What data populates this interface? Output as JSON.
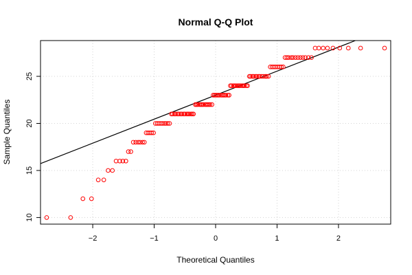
{
  "chart_data": {
    "type": "scatter",
    "title": "Normal Q-Q Plot",
    "xlabel": "Theoretical Quantiles",
    "ylabel": "Sample Quantiles",
    "xlim": [
      -2.85,
      2.85
    ],
    "ylim": [
      9.3,
      28.8
    ],
    "x_ticks": [
      -2,
      -1,
      0,
      1,
      2
    ],
    "x_tick_labels": [
      "−2",
      "−1",
      "0",
      "1",
      "2"
    ],
    "y_ticks": [
      10,
      15,
      20,
      25
    ],
    "y_tick_labels": [
      "10",
      "15",
      "20",
      "25"
    ],
    "grid": true,
    "reference_line": {
      "intercept": 23.0,
      "slope": 2.55
    },
    "colors": {
      "points": "#ff0000",
      "line": "#000000",
      "grid": "#d3d3d3"
    },
    "series": [
      {
        "points": [
          [
            -2.75,
            10
          ],
          [
            -2.36,
            10
          ],
          [
            -2.16,
            12
          ],
          [
            -2.02,
            12
          ],
          [
            -1.91,
            14
          ],
          [
            -1.82,
            14
          ],
          [
            -1.75,
            15
          ],
          [
            -1.68,
            15
          ],
          [
            -1.62,
            16
          ],
          [
            -1.56,
            16
          ],
          [
            -1.51,
            16
          ],
          [
            -1.46,
            16
          ],
          [
            -1.42,
            17
          ],
          [
            -1.38,
            17
          ],
          [
            -1.34,
            18
          ],
          [
            -1.3,
            18
          ],
          [
            -1.26,
            18
          ],
          [
            -1.23,
            18
          ],
          [
            -1.19,
            18
          ],
          [
            -1.16,
            18
          ],
          [
            -1.13,
            19
          ],
          [
            -1.1,
            19
          ],
          [
            -1.07,
            19
          ],
          [
            -1.04,
            19
          ],
          [
            -1.01,
            19
          ],
          [
            -0.98,
            20
          ],
          [
            -0.95,
            20
          ],
          [
            -0.92,
            20
          ],
          [
            -0.89,
            20
          ],
          [
            -0.86,
            20
          ],
          [
            -0.83,
            20
          ],
          [
            -0.81,
            20
          ],
          [
            -0.78,
            20
          ],
          [
            -0.75,
            20
          ],
          [
            -0.72,
            21
          ],
          [
            -0.7,
            21
          ],
          [
            -0.67,
            21
          ],
          [
            -0.65,
            21
          ],
          [
            -0.62,
            21
          ],
          [
            -0.6,
            21
          ],
          [
            -0.57,
            21
          ],
          [
            -0.55,
            21
          ],
          [
            -0.52,
            21
          ],
          [
            -0.5,
            21
          ],
          [
            -0.47,
            21
          ],
          [
            -0.45,
            21
          ],
          [
            -0.43,
            21
          ],
          [
            -0.4,
            21
          ],
          [
            -0.38,
            21
          ],
          [
            -0.36,
            21
          ],
          [
            -0.33,
            22
          ],
          [
            -0.31,
            22
          ],
          [
            -0.29,
            22
          ],
          [
            -0.26,
            22
          ],
          [
            -0.24,
            22
          ],
          [
            -0.22,
            22
          ],
          [
            -0.2,
            22
          ],
          [
            -0.17,
            22
          ],
          [
            -0.15,
            22
          ],
          [
            -0.13,
            22
          ],
          [
            -0.11,
            22
          ],
          [
            -0.09,
            22
          ],
          [
            -0.06,
            22
          ],
          [
            -0.04,
            23
          ],
          [
            -0.02,
            23
          ],
          [
            0.0,
            23
          ],
          [
            0.02,
            23
          ],
          [
            0.04,
            23
          ],
          [
            0.06,
            23
          ],
          [
            0.09,
            23
          ],
          [
            0.11,
            23
          ],
          [
            0.13,
            23
          ],
          [
            0.15,
            23
          ],
          [
            0.17,
            23
          ],
          [
            0.2,
            23
          ],
          [
            0.22,
            23
          ],
          [
            0.24,
            24
          ],
          [
            0.26,
            24
          ],
          [
            0.29,
            24
          ],
          [
            0.31,
            24
          ],
          [
            0.33,
            24
          ],
          [
            0.36,
            24
          ],
          [
            0.38,
            24
          ],
          [
            0.4,
            24
          ],
          [
            0.43,
            24
          ],
          [
            0.45,
            24
          ],
          [
            0.47,
            24
          ],
          [
            0.5,
            24
          ],
          [
            0.52,
            24
          ],
          [
            0.55,
            25
          ],
          [
            0.57,
            25
          ],
          [
            0.6,
            25
          ],
          [
            0.62,
            25
          ],
          [
            0.65,
            25
          ],
          [
            0.67,
            25
          ],
          [
            0.7,
            25
          ],
          [
            0.72,
            25
          ],
          [
            0.75,
            25
          ],
          [
            0.78,
            25
          ],
          [
            0.81,
            25
          ],
          [
            0.83,
            25
          ],
          [
            0.86,
            25
          ],
          [
            0.89,
            26
          ],
          [
            0.92,
            26
          ],
          [
            0.95,
            26
          ],
          [
            0.98,
            26
          ],
          [
            1.01,
            26
          ],
          [
            1.04,
            26
          ],
          [
            1.07,
            26
          ],
          [
            1.1,
            26
          ],
          [
            1.13,
            27
          ],
          [
            1.16,
            27
          ],
          [
            1.19,
            27
          ],
          [
            1.23,
            27
          ],
          [
            1.26,
            27
          ],
          [
            1.3,
            27
          ],
          [
            1.34,
            27
          ],
          [
            1.38,
            27
          ],
          [
            1.42,
            27
          ],
          [
            1.46,
            27
          ],
          [
            1.51,
            27
          ],
          [
            1.56,
            27
          ],
          [
            1.62,
            28
          ],
          [
            1.68,
            28
          ],
          [
            1.75,
            28
          ],
          [
            1.82,
            28
          ],
          [
            1.91,
            28
          ],
          [
            2.02,
            28
          ],
          [
            2.16,
            28
          ],
          [
            2.36,
            28
          ],
          [
            2.75,
            28
          ]
        ]
      }
    ]
  }
}
